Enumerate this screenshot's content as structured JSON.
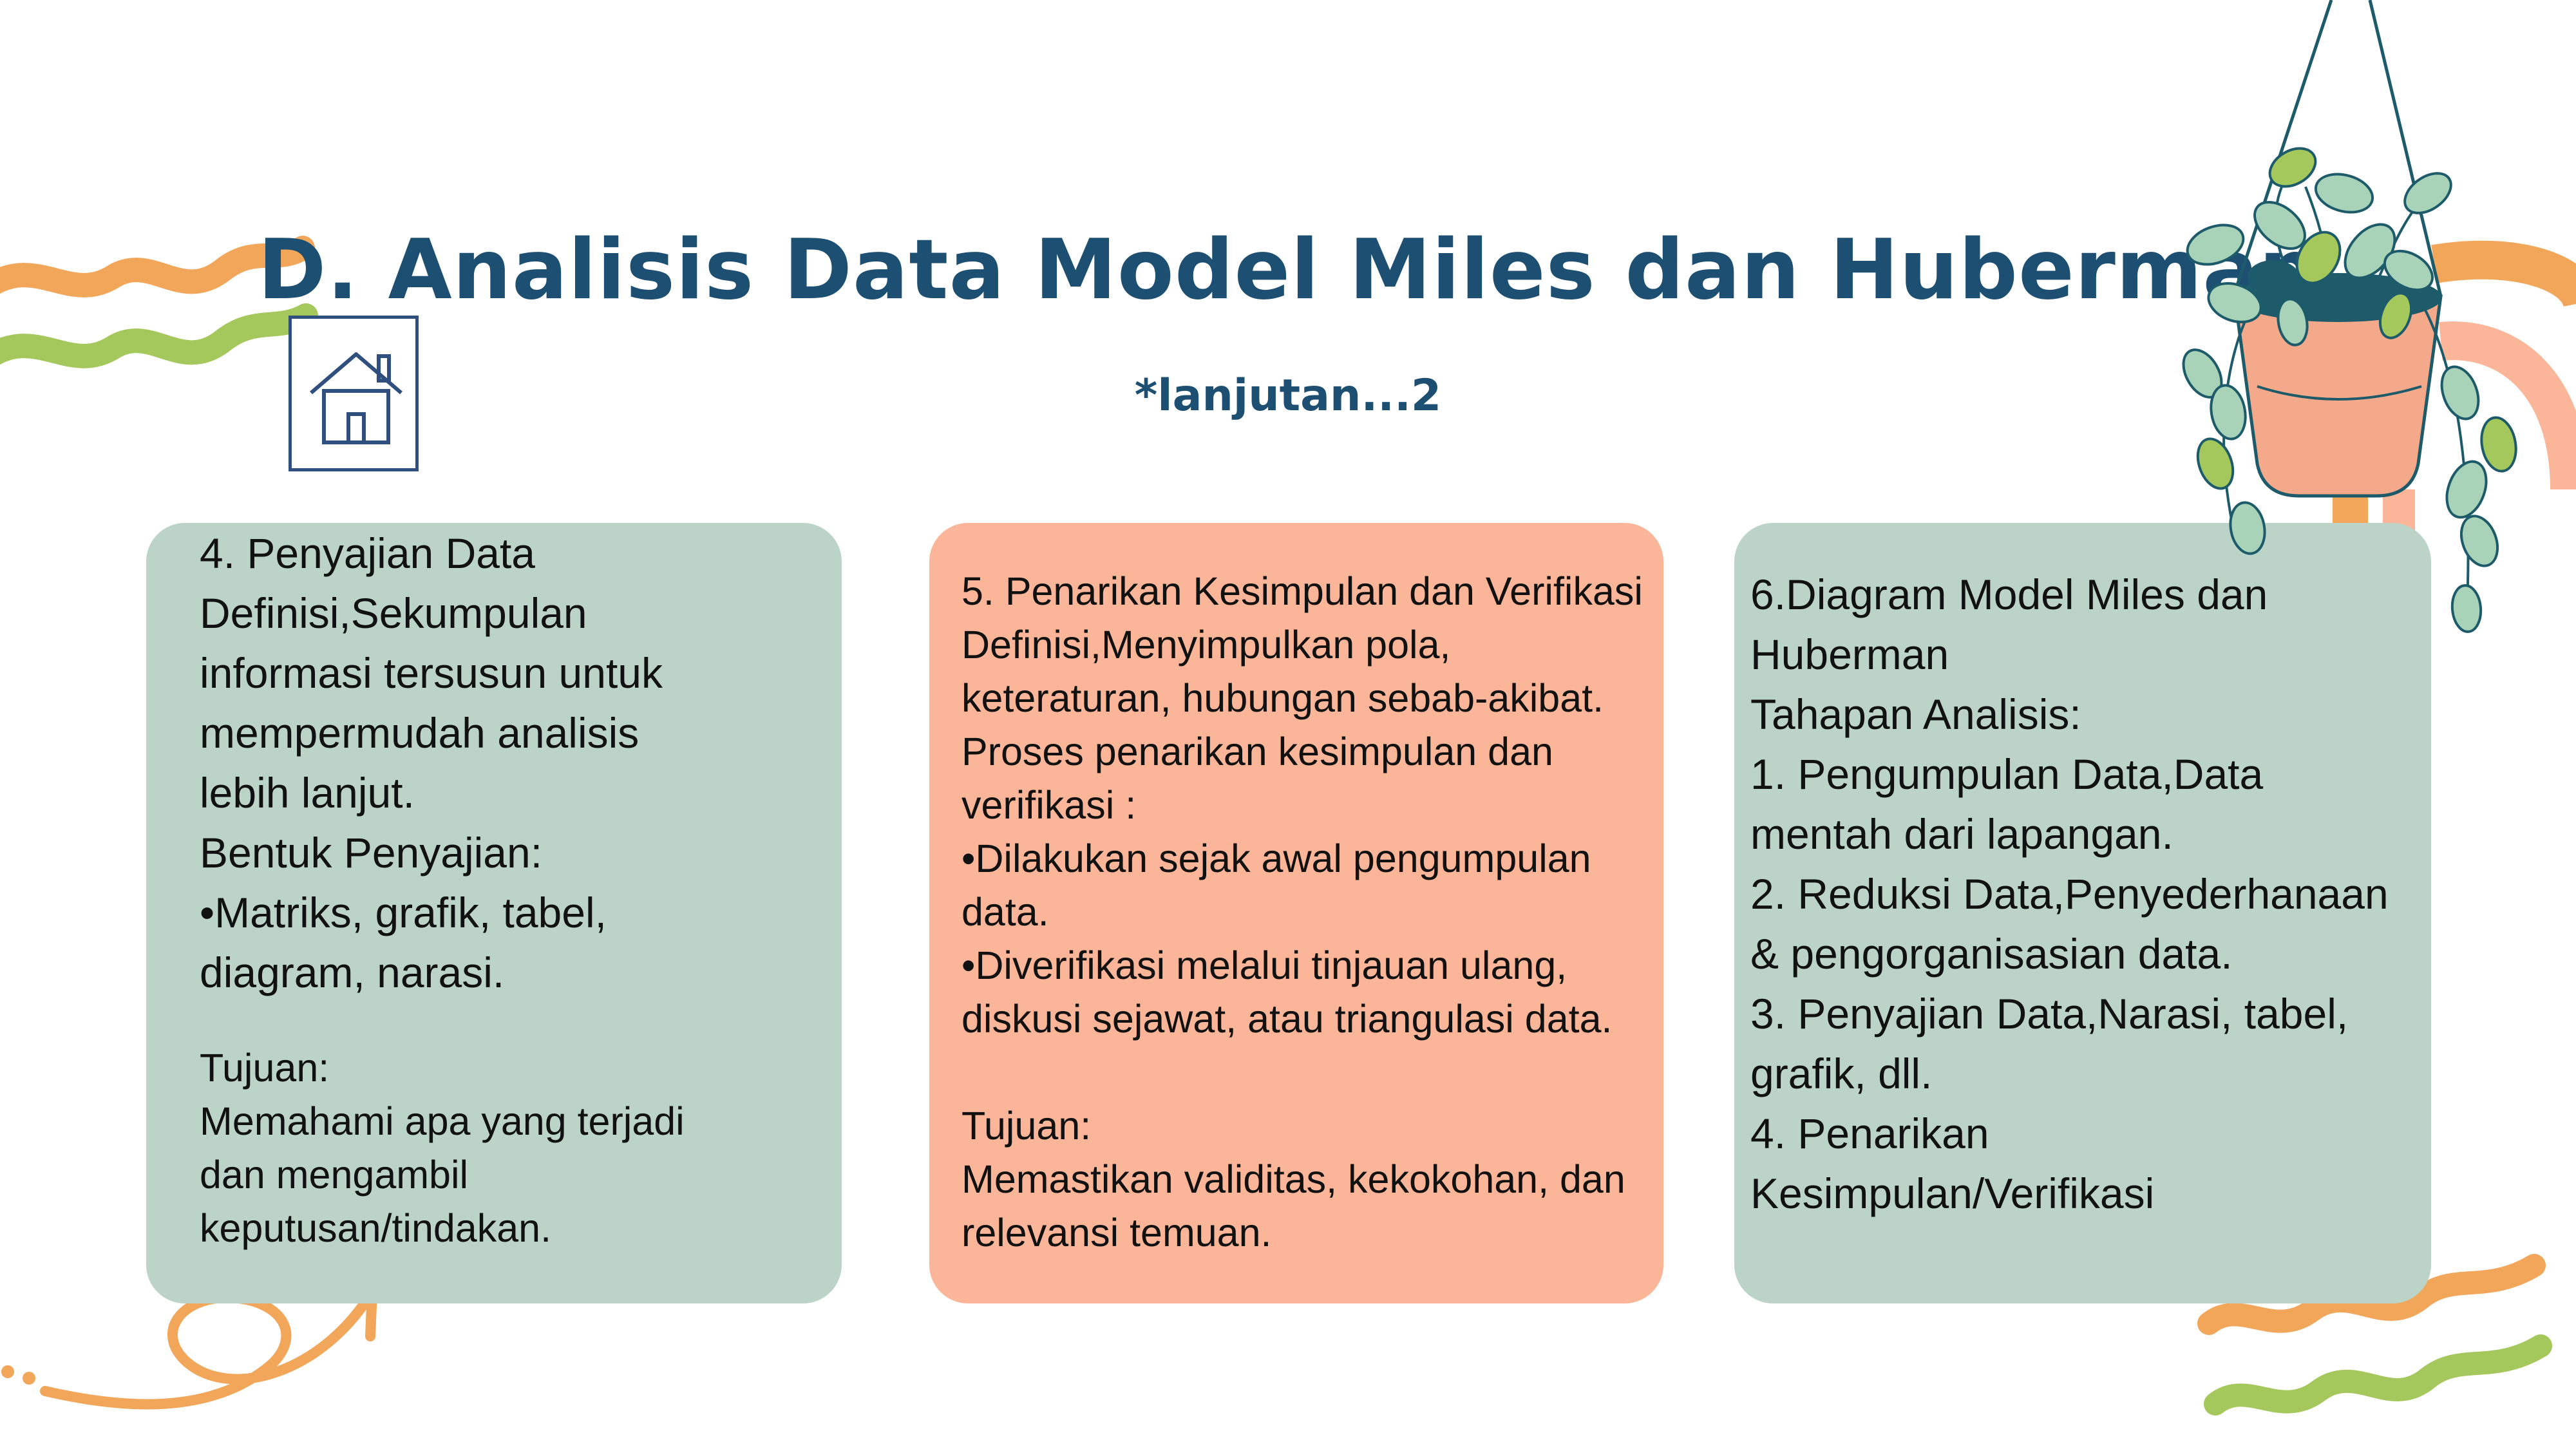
{
  "title": "D. Analisis Data Model Miles dan Huberman",
  "subtitle": "*lanjutan...2",
  "icons": {
    "home": "home-icon",
    "plant": "hanging-plant-illustration",
    "waves": "wave-decoration",
    "arrow": "curly-arrow-decoration"
  },
  "colors": {
    "title": "#1d4f72",
    "card_green": "#bcd4c7",
    "card_peach": "#fbb598",
    "orange": "#f2a65a",
    "green": "#a5c85c"
  },
  "card1": {
    "heading": "4. Penyajian Data",
    "definition": [
      "Definisi,Sekumpulan",
      "informasi tersusun untuk",
      "mempermudah analisis",
      "lebih lanjut."
    ],
    "forms_label": "Bentuk Penyajian:",
    "forms": [
      "•Matriks, grafik, tabel,",
      "diagram, narasi."
    ],
    "goal_label": "Tujuan:",
    "goal": [
      "Memahami apa yang terjadi",
      "dan mengambil",
      "keputusan/tindakan."
    ]
  },
  "card2": {
    "heading": "5. Penarikan Kesimpulan dan Verifikasi",
    "lines": [
      "Definisi,Menyimpulkan pola,",
      "keteraturan, hubungan sebab-akibat.",
      "Proses penarikan kesimpulan dan",
      "verifikasi :",
      "•Dilakukan sejak awal pengumpulan",
      "data.",
      "•Diverifikasi melalui tinjauan ulang,",
      "diskusi sejawat, atau triangulasi data."
    ],
    "goal_label": "Tujuan:",
    "goal": [
      "Memastikan validitas, kekokohan, dan",
      "relevansi temuan."
    ]
  },
  "card3": {
    "heading": [
      "6.Diagram Model Miles dan",
      "Huberman"
    ],
    "stages_label": "Tahapan Analisis:",
    "stages": [
      "1. Pengumpulan Data,Data",
      "mentah dari lapangan.",
      "2. Reduksi Data,Penyederhanaan",
      "& pengorganisasian data.",
      "3. Penyajian Data,Narasi, tabel,",
      "grafik, dll.",
      "4. Penarikan",
      "Kesimpulan/Verifikasi"
    ]
  }
}
